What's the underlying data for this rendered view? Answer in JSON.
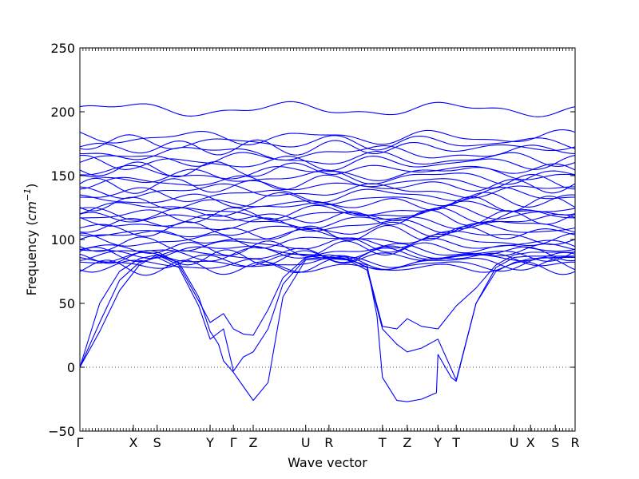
{
  "chart_data": {
    "type": "line",
    "title": "",
    "xlabel": "Wave vector",
    "ylabel": "Frequency (cm⁻¹)",
    "ylabel_parts": {
      "prefix": "Frequency (",
      "unit_base": "cm",
      "unit_exp": "−1",
      "suffix": ")"
    },
    "ylim": [
      -50,
      250
    ],
    "yticks": [
      -50,
      0,
      50,
      100,
      150,
      200,
      250
    ],
    "ytick_labels": [
      "−50",
      "0",
      "50",
      "100",
      "150",
      "200",
      "250"
    ],
    "x_range": [
      0,
      1
    ],
    "high_symmetry_points": [
      {
        "label": "Γ",
        "x": 0.0
      },
      {
        "label": "X",
        "x": 0.108
      },
      {
        "label": "S",
        "x": 0.156
      },
      {
        "label": "Y",
        "x": 0.263
      },
      {
        "label": "Γ",
        "x": 0.31
      },
      {
        "label": "Z",
        "x": 0.35
      },
      {
        "label": "U",
        "x": 0.456
      },
      {
        "label": "R",
        "x": 0.503
      },
      {
        "label": "T",
        "x": 0.611
      },
      {
        "label": "Z",
        "x": 0.661
      },
      {
        "label": "Y",
        "x": 0.723
      },
      {
        "label": "T",
        "x": 0.76
      },
      {
        "label": "U",
        "x": 0.877
      },
      {
        "label": "X",
        "x": 0.91
      },
      {
        "label": "S",
        "x": 0.96
      },
      {
        "label": "R",
        "x": 1.0
      }
    ],
    "zero_line": 0,
    "series_color": "#0000ff",
    "grid": false,
    "flat_band_levels": [
      202,
      180,
      176,
      172,
      168,
      163,
      160,
      155,
      152,
      149,
      145,
      142,
      138,
      135,
      131,
      128,
      124,
      121,
      119,
      117,
      114,
      111,
      108,
      105,
      102,
      99,
      96,
      93,
      91,
      89,
      88,
      86,
      84,
      82,
      80,
      78
    ],
    "acoustic_branches": [
      {
        "name": "acoustic-1",
        "x": [
          0.0,
          0.04,
          0.08,
          0.12,
          0.156,
          0.2,
          0.24,
          0.263,
          0.28,
          0.29,
          0.31,
          0.33,
          0.35,
          0.38,
          0.41,
          0.456,
          0.503,
          0.54,
          0.58,
          0.6,
          0.611,
          0.64,
          0.661,
          0.69,
          0.72,
          0.723,
          0.75,
          0.76,
          0.8,
          0.84,
          0.877,
          0.91,
          0.96,
          1.0
        ],
        "y": [
          0,
          50,
          75,
          85,
          88,
          82,
          55,
          28,
          18,
          5,
          -4,
          -15,
          -26,
          -12,
          55,
          84,
          85,
          84,
          80,
          40,
          -8,
          -26,
          -27,
          -25,
          -20,
          10,
          -8,
          -11,
          50,
          75,
          82,
          85,
          86,
          86
        ]
      },
      {
        "name": "acoustic-2",
        "x": [
          0.0,
          0.04,
          0.08,
          0.12,
          0.156,
          0.2,
          0.24,
          0.263,
          0.29,
          0.31,
          0.33,
          0.35,
          0.38,
          0.41,
          0.456,
          0.503,
          0.54,
          0.58,
          0.611,
          0.64,
          0.661,
          0.69,
          0.723,
          0.76,
          0.8,
          0.84,
          0.877,
          0.91,
          0.96,
          1.0
        ],
        "y": [
          0,
          35,
          68,
          82,
          86,
          78,
          48,
          22,
          30,
          -3,
          8,
          12,
          30,
          65,
          85,
          86,
          84,
          76,
          30,
          18,
          12,
          15,
          22,
          -10,
          50,
          78,
          86,
          87,
          87,
          87
        ]
      },
      {
        "name": "acoustic-3",
        "x": [
          0.0,
          0.04,
          0.08,
          0.12,
          0.156,
          0.2,
          0.24,
          0.263,
          0.29,
          0.31,
          0.33,
          0.35,
          0.38,
          0.41,
          0.456,
          0.503,
          0.54,
          0.58,
          0.611,
          0.64,
          0.661,
          0.69,
          0.723,
          0.76,
          0.8,
          0.84,
          0.877,
          0.91,
          0.96,
          1.0
        ],
        "y": [
          0,
          28,
          60,
          80,
          88,
          80,
          52,
          35,
          42,
          30,
          26,
          25,
          45,
          70,
          86,
          88,
          86,
          78,
          32,
          30,
          38,
          32,
          30,
          48,
          62,
          80,
          88,
          90,
          90,
          90
        ]
      }
    ]
  }
}
